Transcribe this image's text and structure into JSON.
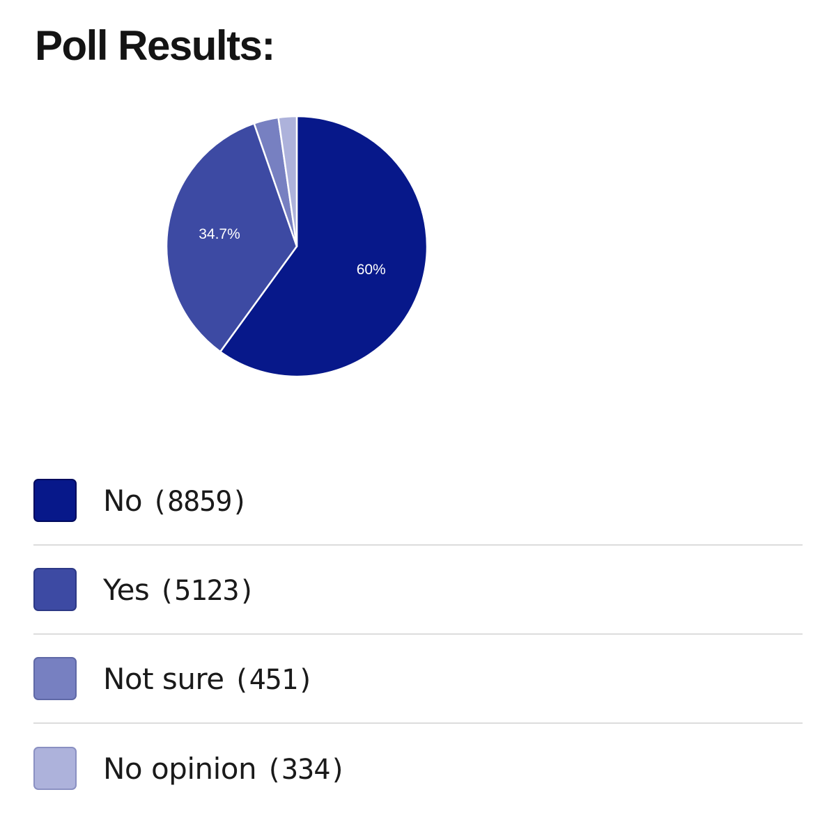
{
  "title": "Poll Results:",
  "chart_data": {
    "type": "pie",
    "title": "",
    "slices": [
      {
        "label": "No",
        "count": "8859",
        "value": 8859,
        "percent_label": "60%",
        "color": "#07188a"
      },
      {
        "label": "Yes",
        "count": "5123",
        "value": 5123,
        "percent_label": "34.7%",
        "color": "#3d4aa3"
      },
      {
        "label": "Not sure",
        "count": "451",
        "value": 451,
        "percent_label": "",
        "color": "#7780c1"
      },
      {
        "label": "No opinion",
        "count": "334",
        "value": 334,
        "percent_label": "",
        "color": "#adb2db"
      }
    ],
    "legend_placement": "bottom"
  },
  "legend": {
    "items": [
      {
        "label": "No",
        "count": "(8859)"
      },
      {
        "label": "Yes",
        "count": "(5123)"
      },
      {
        "label": "Not sure",
        "count": "(451)"
      },
      {
        "label": "No opinion",
        "count": "(334)"
      }
    ]
  }
}
